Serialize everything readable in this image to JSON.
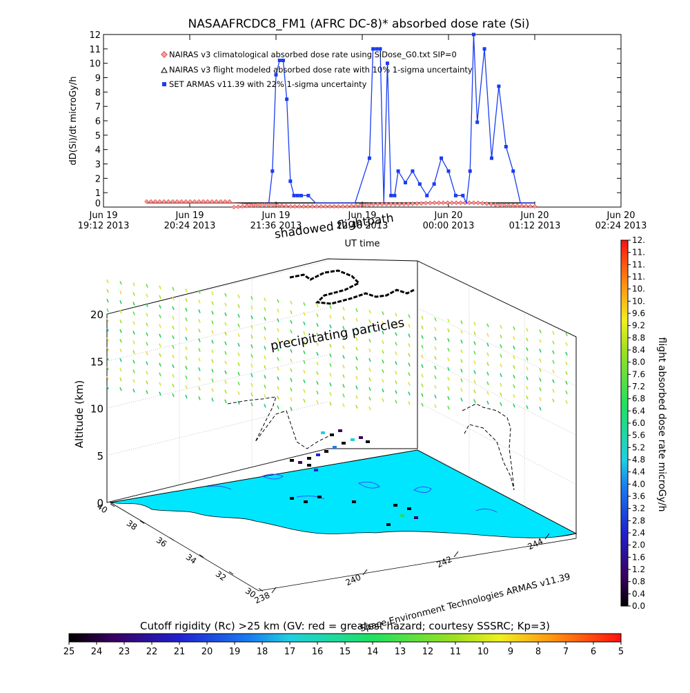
{
  "top_chart": {
    "title": "NASAAFRCDC8_FM1 (AFRC DC-8)* absorbed dose rate (Si)",
    "ylabel": "dD(Si)/dt microGy/h",
    "xlabel": "UT time",
    "yticks": [
      "0",
      "1",
      "2",
      "3",
      "4",
      "5",
      "6",
      "7",
      "8",
      "9",
      "10",
      "11",
      "12"
    ],
    "xticks": [
      {
        "l1": "Jun 19",
        "l2": "19:12 2013"
      },
      {
        "l1": "Jun 19",
        "l2": "20:24 2013"
      },
      {
        "l1": "Jun 19",
        "l2": "21:36 2013"
      },
      {
        "l1": "Jun 19",
        "l2": "22:48 2013"
      },
      {
        "l1": "Jun 20",
        "l2": "00:00 2013"
      },
      {
        "l1": "Jun 20",
        "l2": "01:12 2013"
      },
      {
        "l1": "Jun 20",
        "l2": "02:24 2013"
      }
    ],
    "legend": [
      "NAIRAS v3 climatological absorbed dose rate using SiDose_G0.txt SIP=0",
      "NAIRAS v3 flight modeled absorbed dose rate with 10% 1-sigma uncertainty",
      "SET ARMAS v11.39 with 22% 1-sigma uncertainty"
    ],
    "overlay_text": "shadowed flightpath",
    "colors": {
      "climatological": "#e05050",
      "flight_model": "#000000",
      "armas": "#1a3cf0"
    }
  },
  "chart_data": [
    {
      "type": "line",
      "title": "NASAAFRCDC8_FM1 (AFRC DC-8)* absorbed dose rate (Si)",
      "xlabel": "UT time",
      "ylabel": "dD(Si)/dt microGy/h",
      "ylim": [
        0,
        12
      ],
      "xlim": [
        "Jun 19 19:12 2013",
        "Jun 20 02:24 2013"
      ],
      "x_unit": "hours after Jun 19 19:12 2013",
      "series": [
        {
          "name": "NAIRAS v3 climatological absorbed dose rate using SiDose_G0.txt SIP=0",
          "x": [
            0.6,
            1.2,
            1.8,
            2.2,
            2.35,
            2.6,
            3.0,
            3.4,
            3.8,
            4.2,
            4.6,
            4.9,
            5.2,
            5.5,
            6.0
          ],
          "values": [
            0,
            0,
            0,
            0.15,
            0.15,
            0.05,
            0.05,
            0.05,
            0.2,
            0.2,
            0.3,
            0.3,
            0.3,
            0.15,
            0.05
          ]
        },
        {
          "name": "NAIRAS v3 flight modeled absorbed dose rate with 10% 1-sigma uncertainty",
          "x": [
            0.6,
            1.5,
            2.5,
            3.5,
            4.5,
            5.5,
            6.0
          ],
          "values": [
            0,
            0,
            0,
            0,
            0,
            0,
            0
          ]
        },
        {
          "name": "SET ARMAS v11.39 with 22% 1-sigma uncertainty",
          "x": [
            2.3,
            2.35,
            2.4,
            2.45,
            2.5,
            2.55,
            2.6,
            2.65,
            2.7,
            2.75,
            2.85,
            2.95,
            3.0,
            3.5,
            3.7,
            3.75,
            3.8,
            3.85,
            3.9,
            3.95,
            4.0,
            4.05,
            4.1,
            4.2,
            4.3,
            4.4,
            4.5,
            4.6,
            4.7,
            4.8,
            4.9,
            5.0,
            5.05,
            5.1,
            5.15,
            5.2,
            5.3,
            5.4,
            5.5,
            5.6,
            5.7,
            5.8,
            5.9,
            6.0
          ],
          "values": [
            0,
            2.5,
            9.2,
            10.2,
            10.2,
            7.5,
            1.8,
            0.8,
            0.8,
            0.8,
            0.8,
            0,
            0,
            0,
            3.4,
            11,
            11,
            11,
            0,
            10,
            0.8,
            0.8,
            2.5,
            1.7,
            2.5,
            1.6,
            0.8,
            1.6,
            3.4,
            2.5,
            0.8,
            0.8,
            0,
            2.5,
            12,
            5.9,
            11,
            3.4,
            8.4,
            4.2,
            2.5,
            0,
            0,
            0
          ]
        }
      ]
    },
    {
      "type": "scatter",
      "title": "",
      "xlabel": "Space Environment Technologies ARMAS v11.39",
      "ylabel": "Altitude (km)",
      "zticks": [
        "0",
        "5",
        "10",
        "15",
        "20"
      ],
      "lat_ticks": [
        "30",
        "32",
        "34",
        "36",
        "38",
        "40"
      ],
      "lon_ticks": [
        "238",
        "240",
        "242",
        "244"
      ],
      "annotations": [
        "precipitating particles"
      ]
    }
  ],
  "colorbar_right": {
    "label": "flight absorbed dose rate microGy/h",
    "ticks": [
      "0.0",
      "0.4",
      "0.8",
      "1.2",
      "1.6",
      "2.0",
      "2.4",
      "2.8",
      "3.2",
      "3.6",
      "4.0",
      "4.4",
      "4.8",
      "5.2",
      "5.6",
      "6.0",
      "6.4",
      "6.8",
      "7.2",
      "7.6",
      "8.0",
      "8.4",
      "8.8",
      "9.2",
      "9.6",
      "10.",
      "10.",
      "11.",
      "11.",
      "11.",
      "12."
    ]
  },
  "colorbar_bottom": {
    "label": "Cutoff rigidity (Rc) >25 km (GV: red = greatest hazard; courtesy SSSRC; Kp=3)",
    "ticks": [
      "25",
      "24",
      "23",
      "22",
      "21",
      "20",
      "19",
      "18",
      "17",
      "16",
      "15",
      "14",
      "13",
      "12",
      "11",
      "10",
      "9",
      "8",
      "7",
      "6",
      "5"
    ]
  },
  "scene": {
    "zlabel": "Altitude (km)",
    "credit": "Space Environment Technologies ARMAS v11.39",
    "annotation": "precipitating particles"
  }
}
